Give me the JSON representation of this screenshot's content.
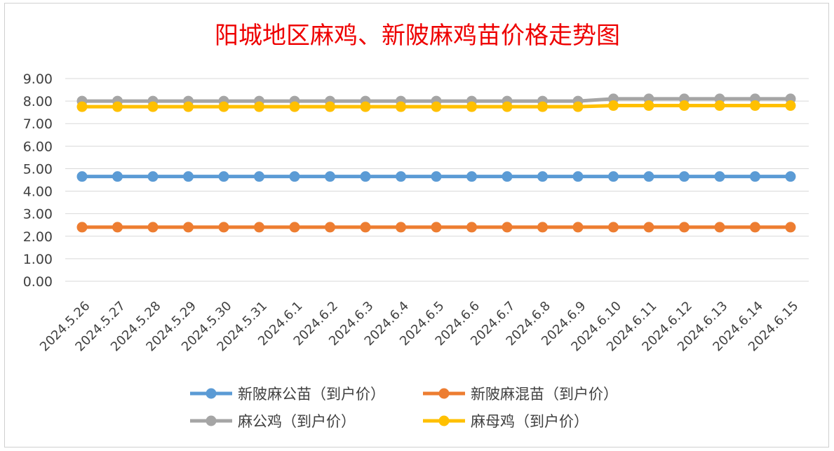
{
  "chart_data": {
    "type": "line",
    "title": "阳城地区麻鸡、新陂麻鸡苗价格走势图",
    "xlabel": "",
    "ylabel": "",
    "ylim": [
      0,
      9
    ],
    "yticks": [
      "0.00",
      "1.00",
      "2.00",
      "3.00",
      "4.00",
      "5.00",
      "6.00",
      "7.00",
      "8.00",
      "9.00"
    ],
    "grid": true,
    "legend_position": "bottom",
    "categories": [
      "2024.5.26",
      "2024.5.27",
      "2024.5.28",
      "2024.5.29",
      "2024.5.30",
      "2024.5.31",
      "2024.6.1",
      "2024.6.2",
      "2024.6.3",
      "2024.6.4",
      "2024.6.5",
      "2024.6.6",
      "2024.6.7",
      "2024.6.8",
      "2024.6.9",
      "2024.6.10",
      "2024.6.11",
      "2024.6.12",
      "2024.6.13",
      "2024.6.14",
      "2024.6.15"
    ],
    "series": [
      {
        "name": "新陂麻公苗（到户价）",
        "color": "#5b9bd5",
        "values": [
          4.65,
          4.65,
          4.65,
          4.65,
          4.65,
          4.65,
          4.65,
          4.65,
          4.65,
          4.65,
          4.65,
          4.65,
          4.65,
          4.65,
          4.65,
          4.65,
          4.65,
          4.65,
          4.65,
          4.65,
          4.65
        ]
      },
      {
        "name": "新陂麻混苗（到户价）",
        "color": "#ed7d31",
        "values": [
          2.4,
          2.4,
          2.4,
          2.4,
          2.4,
          2.4,
          2.4,
          2.4,
          2.4,
          2.4,
          2.4,
          2.4,
          2.4,
          2.4,
          2.4,
          2.4,
          2.4,
          2.4,
          2.4,
          2.4,
          2.4
        ]
      },
      {
        "name": "麻公鸡（到户价）",
        "color": "#a5a5a5",
        "values": [
          8.0,
          8.0,
          8.0,
          8.0,
          8.0,
          8.0,
          8.0,
          8.0,
          8.0,
          8.0,
          8.0,
          8.0,
          8.0,
          8.0,
          8.0,
          8.1,
          8.1,
          8.1,
          8.1,
          8.1,
          8.1
        ]
      },
      {
        "name": "麻母鸡（到户价）",
        "color": "#ffc000",
        "values": [
          7.75,
          7.75,
          7.75,
          7.75,
          7.75,
          7.75,
          7.75,
          7.75,
          7.75,
          7.75,
          7.75,
          7.75,
          7.75,
          7.75,
          7.75,
          7.8,
          7.8,
          7.8,
          7.8,
          7.8,
          7.8
        ]
      }
    ],
    "legend_order": [
      0,
      1,
      2,
      3
    ]
  }
}
